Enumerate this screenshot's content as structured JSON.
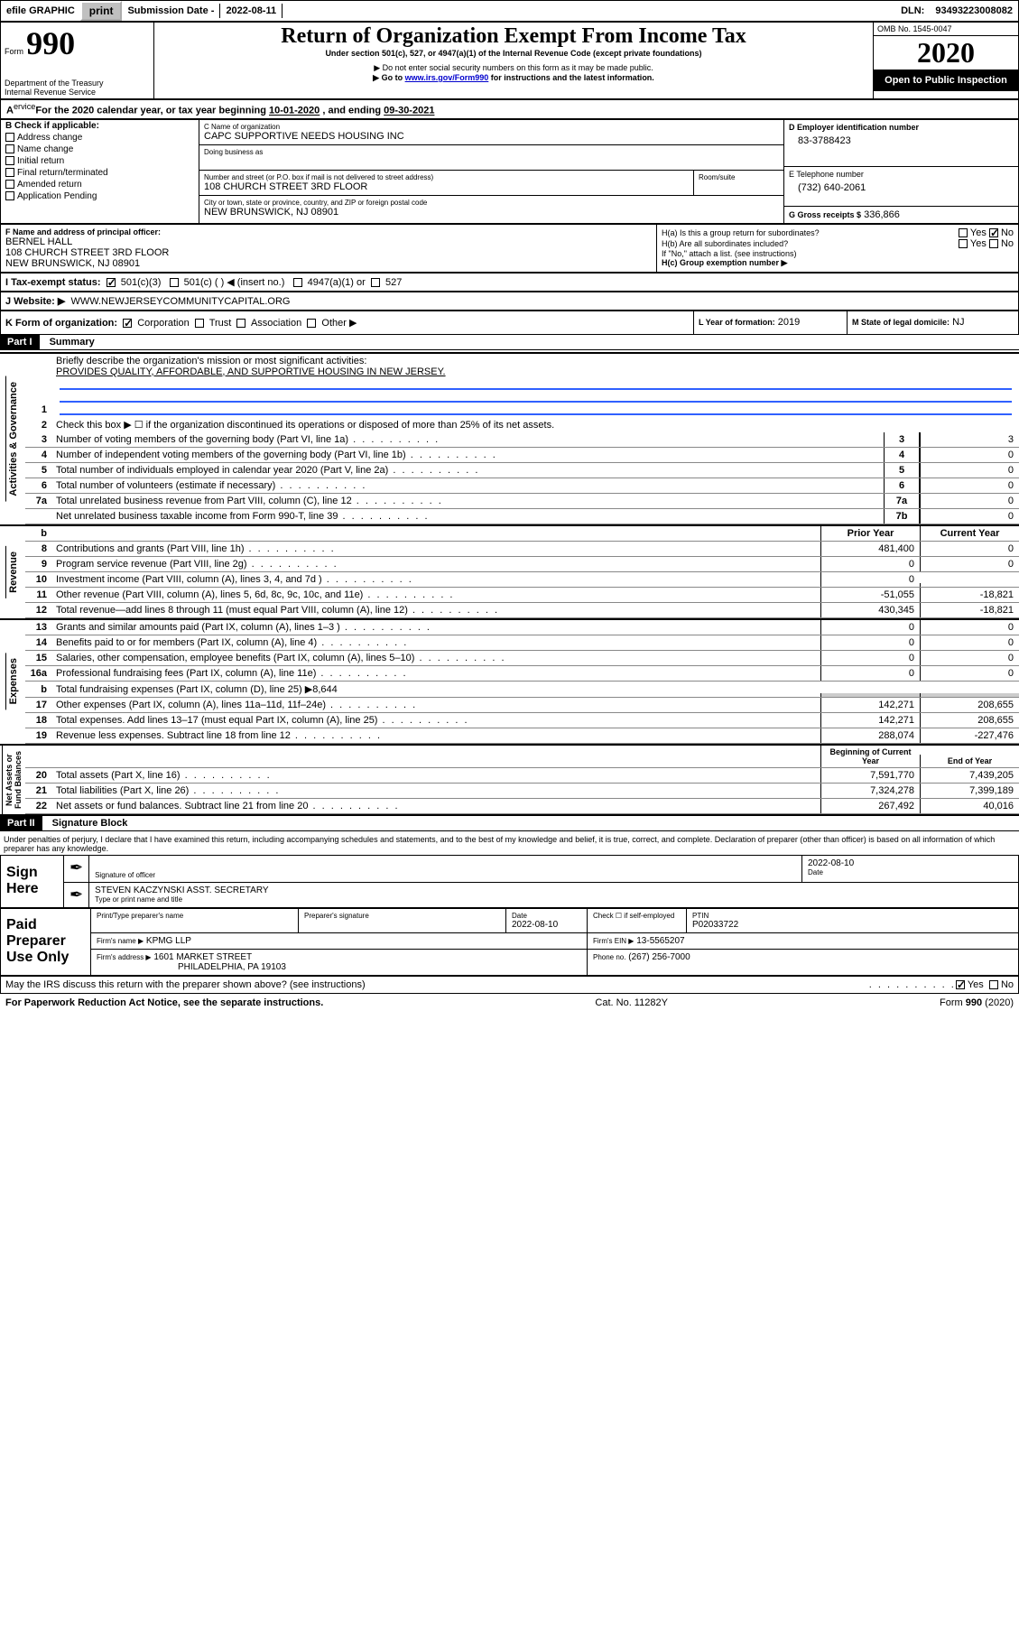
{
  "topbar": {
    "efile": "efile GRAPHIC",
    "print": "print",
    "subLabel": "Submission Date -",
    "subDate": "2022-08-11",
    "dlnLabel": "DLN:",
    "dln": "93493223008082"
  },
  "header": {
    "formWord": "Form",
    "form990": "990",
    "title": "Return of Organization Exempt From Income Tax",
    "subtitle": "Under section 501(c), 527, or 4947(a)(1) of the Internal Revenue Code (except private foundations)",
    "note1": "▶ Do not enter social security numbers on this form as it may be made public.",
    "note2_a": "▶ Go to ",
    "note2_link": "www.irs.gov/Form990",
    "note2_b": " for instructions and the latest information.",
    "dept": "Department of the Treasury\nInternal Revenue Service",
    "omb": "OMB No. 1545-0047",
    "year": "2020",
    "inspect": "Open to Public Inspection"
  },
  "secA": {
    "text_a": "For the 2020 calendar year, or tax year beginning ",
    "begin": "10-01-2020",
    "text_b": " , and ending ",
    "end": "09-30-2021"
  },
  "boxB": {
    "label": "B Check if applicable:",
    "opts": [
      "Address change",
      "Name change",
      "Initial return",
      "Final return/terminated",
      "Amended return",
      "Application Pending"
    ]
  },
  "boxC": {
    "nameLabel": "C Name of organization",
    "name": "CAPC SUPPORTIVE NEEDS HOUSING INC",
    "dbaLabel": "Doing business as",
    "dba": "",
    "streetLabel": "Number and street (or P.O. box if mail is not delivered to street address)",
    "street": "108 CHURCH STREET 3RD FLOOR",
    "roomLabel": "Room/suite",
    "cityLabel": "City or town, state or province, country, and ZIP or foreign postal code",
    "city": "NEW BRUNSWICK, NJ  08901"
  },
  "boxD": {
    "label": "D Employer identification number",
    "val": "83-3788423"
  },
  "boxE": {
    "label": "E Telephone number",
    "val": "(732) 640-2061"
  },
  "boxG": {
    "label": "G Gross receipts $",
    "val": "336,866"
  },
  "boxF": {
    "label": "F  Name and address of principal officer:",
    "name": "BERNEL HALL",
    "addr1": "108 CHURCH STREET 3RD FLOOR",
    "addr2": "NEW BRUNSWICK, NJ  08901"
  },
  "boxH": {
    "ha": "H(a)  Is this a group return for subordinates?",
    "hb": "H(b)  Are all subordinates included?",
    "hnote": "If \"No,\" attach a list. (see instructions)",
    "hc": "H(c)  Group exemption number ▶",
    "yes": "Yes",
    "no": "No"
  },
  "boxI": {
    "label": "I    Tax-exempt status:",
    "o1": "501(c)(3)",
    "o2": "501(c) (  ) ◀ (insert no.)",
    "o3": "4947(a)(1) or",
    "o4": "527"
  },
  "boxJ": {
    "label": "J   Website: ▶",
    "val": "WWW.NEWJERSEYCOMMUNITYCAPITAL.ORG"
  },
  "boxK": {
    "label": "K Form of organization:",
    "o1": "Corporation",
    "o2": "Trust",
    "o3": "Association",
    "o4": "Other ▶"
  },
  "boxL": {
    "label": "L Year of formation:",
    "val": "2019"
  },
  "boxM": {
    "label": "M State of legal domicile:",
    "val": "NJ"
  },
  "part1": {
    "hdr": "Part I",
    "title": "Summary",
    "l1": "Briefly describe the organization's mission or most significant activities:",
    "mission": "PROVIDES QUALITY, AFFORDABLE, AND SUPPORTIVE HOUSING IN NEW JERSEY.",
    "l2": "Check this box ▶ ☐  if the organization discontinued its operations or disposed of more than 25% of its net assets.",
    "sideA": "Activities & Governance",
    "sideR": "Revenue",
    "sideE": "Expenses",
    "sideN": "Net Assets or\nFund Balances",
    "rows_gov": [
      {
        "n": "3",
        "t": "Number of voting members of the governing body (Part VI, line 1a)",
        "b": "3",
        "v": "3"
      },
      {
        "n": "4",
        "t": "Number of independent voting members of the governing body (Part VI, line 1b)",
        "b": "4",
        "v": "0"
      },
      {
        "n": "5",
        "t": "Total number of individuals employed in calendar year 2020 (Part V, line 2a)",
        "b": "5",
        "v": "0"
      },
      {
        "n": "6",
        "t": "Total number of volunteers (estimate if necessary)",
        "b": "6",
        "v": "0"
      },
      {
        "n": "7a",
        "t": "Total unrelated business revenue from Part VIII, column (C), line 12",
        "b": "7a",
        "v": "0"
      },
      {
        "n": "",
        "t": "Net unrelated business taxable income from Form 990-T, line 39",
        "b": "7b",
        "v": "0"
      }
    ],
    "col_prior": "Prior Year",
    "col_curr": "Current Year",
    "col_begin": "Beginning of Current Year",
    "col_end": "End of Year",
    "rows_rev": [
      {
        "n": "8",
        "t": "Contributions and grants (Part VIII, line 1h)",
        "p": "481,400",
        "c": "0"
      },
      {
        "n": "9",
        "t": "Program service revenue (Part VIII, line 2g)",
        "p": "0",
        "c": "0"
      },
      {
        "n": "10",
        "t": "Investment income (Part VIII, column (A), lines 3, 4, and 7d )",
        "p": "0",
        "c": ""
      },
      {
        "n": "11",
        "t": "Other revenue (Part VIII, column (A), lines 5, 6d, 8c, 9c, 10c, and 11e)",
        "p": "-51,055",
        "c": "-18,821"
      },
      {
        "n": "12",
        "t": "Total revenue—add lines 8 through 11 (must equal Part VIII, column (A), line 12)",
        "p": "430,345",
        "c": "-18,821"
      }
    ],
    "rows_exp": [
      {
        "n": "13",
        "t": "Grants and similar amounts paid (Part IX, column (A), lines 1–3 )",
        "p": "0",
        "c": "0"
      },
      {
        "n": "14",
        "t": "Benefits paid to or for members (Part IX, column (A), line 4)",
        "p": "0",
        "c": "0"
      },
      {
        "n": "15",
        "t": "Salaries, other compensation, employee benefits (Part IX, column (A), lines 5–10)",
        "p": "0",
        "c": "0"
      },
      {
        "n": "16a",
        "t": "Professional fundraising fees (Part IX, column (A), line 11e)",
        "p": "0",
        "c": "0"
      },
      {
        "n": "b",
        "t": "Total fundraising expenses (Part IX, column (D), line 25) ▶8,644",
        "p": "",
        "c": "",
        "shaded": true
      },
      {
        "n": "17",
        "t": "Other expenses (Part IX, column (A), lines 11a–11d, 11f–24e)",
        "p": "142,271",
        "c": "208,655"
      },
      {
        "n": "18",
        "t": "Total expenses. Add lines 13–17 (must equal Part IX, column (A), line 25)",
        "p": "142,271",
        "c": "208,655"
      },
      {
        "n": "19",
        "t": "Revenue less expenses. Subtract line 18 from line 12",
        "p": "288,074",
        "c": "-227,476"
      }
    ],
    "rows_net": [
      {
        "n": "20",
        "t": "Total assets (Part X, line 16)",
        "p": "7,591,770",
        "c": "7,439,205"
      },
      {
        "n": "21",
        "t": "Total liabilities (Part X, line 26)",
        "p": "7,324,278",
        "c": "7,399,189"
      },
      {
        "n": "22",
        "t": "Net assets or fund balances. Subtract line 21 from line 20",
        "p": "267,492",
        "c": "40,016"
      }
    ]
  },
  "part2": {
    "hdr": "Part II",
    "title": "Signature Block",
    "decl": "Under penalties of perjury, I declare that I have examined this return, including accompanying schedules and statements, and to the best of my knowledge and belief, it is true, correct, and complete. Declaration of preparer (other than officer) is based on all information of which preparer has any knowledge.",
    "signHere": "Sign Here",
    "sigOfficer": "Signature of officer",
    "date": "Date",
    "sigDate": "2022-08-10",
    "officer": "STEVEN KACZYNSKI  ASST. SECRETARY",
    "typeName": "Type or print name and title",
    "paid": "Paid Preparer Use Only",
    "prepName": "Print/Type preparer's name",
    "prepSig": "Preparer's signature",
    "prepDate": "2022-08-10",
    "selfEmp": "Check ☐ if self-employed",
    "ptinLabel": "PTIN",
    "ptin": "P02033722",
    "firmName": "Firm's name    ▶",
    "firm": "KPMG LLP",
    "firmEinLabel": "Firm's EIN ▶",
    "firmEin": "13-5565207",
    "firmAddr": "Firm's address ▶",
    "addr": "1601 MARKET STREET",
    "addr2": "PHILADELPHIA, PA  19103",
    "phoneLabel": "Phone no.",
    "phone": "(267) 256-7000",
    "discuss": "May the IRS discuss this return with the preparer shown above? (see instructions)",
    "yes": "Yes",
    "no": "No"
  },
  "footer": {
    "left": "For Paperwork Reduction Act Notice, see the separate instructions.",
    "mid": "Cat. No. 11282Y",
    "right": "Form 990 (2020)"
  }
}
